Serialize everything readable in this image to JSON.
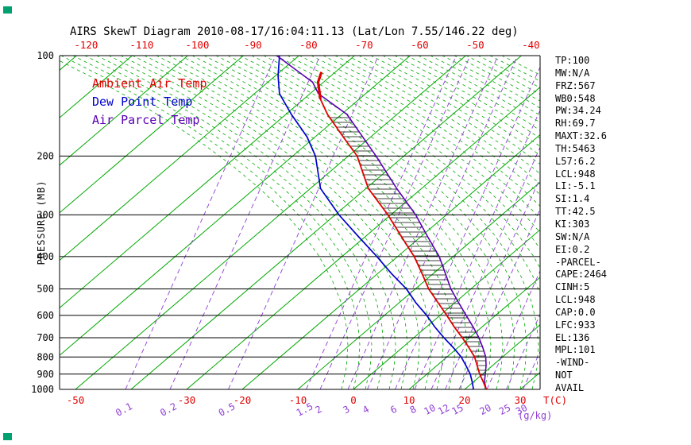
{
  "chart_data": {
    "type": "line",
    "title": "AIRS SkewT Diagram 2010-08-17/16:04:11.13 (Lat/Lon 7.55/146.22 deg)",
    "xlabel": "T(C)",
    "ylabel": "PRESSURE (MB)",
    "y_scale": "log",
    "ylim": [
      1000,
      100
    ],
    "pressure_ticks_mb": [
      100,
      200,
      300,
      400,
      500,
      600,
      700,
      800,
      900,
      1000
    ],
    "top_temp_ticks_c": [
      -120,
      -110,
      -100,
      -90,
      -80,
      -70,
      -60,
      -50,
      -40
    ],
    "bottom_temp_ticks_c": [
      -50,
      -30,
      -20,
      -10,
      0,
      10,
      20,
      30
    ],
    "temp_axis_unit": "T(C)",
    "mixing_ratio_unit": "(g/kg)",
    "mixing_ratio_ticks": [
      {
        "label": "0.1",
        "dewpoint_c_at_1000mb": -41
      },
      {
        "label": "0.2",
        "dewpoint_c_at_1000mb": -33
      },
      {
        "label": "0.5",
        "dewpoint_c_at_1000mb": -22.5
      },
      {
        "label": "1.5",
        "dewpoint_c_at_1000mb": -8.5
      },
      {
        "label": "2",
        "dewpoint_c_at_1000mb": -6
      },
      {
        "label": "3",
        "dewpoint_c_at_1000mb": -1
      },
      {
        "label": "4",
        "dewpoint_c_at_1000mb": 2.5
      },
      {
        "label": "6",
        "dewpoint_c_at_1000mb": 7.5
      },
      {
        "label": "8",
        "dewpoint_c_at_1000mb": 11
      },
      {
        "label": "10",
        "dewpoint_c_at_1000mb": 14
      },
      {
        "label": "12",
        "dewpoint_c_at_1000mb": 16.5
      },
      {
        "label": "15",
        "dewpoint_c_at_1000mb": 19
      },
      {
        "label": "20",
        "dewpoint_c_at_1000mb": 24
      },
      {
        "label": "25",
        "dewpoint_c_at_1000mb": 27.5
      },
      {
        "label": "30",
        "dewpoint_c_at_1000mb": 30.5
      }
    ],
    "series": [
      {
        "name": "Dew Point Temp",
        "color": "#0000cc",
        "style": "solid",
        "points": [
          [
            1000,
            21.6
          ],
          [
            950,
            19.8
          ],
          [
            900,
            17.8
          ],
          [
            850,
            15.3
          ],
          [
            800,
            12.6
          ],
          [
            750,
            9.2
          ],
          [
            700,
            5.4
          ],
          [
            650,
            1.5
          ],
          [
            600,
            -2.4
          ],
          [
            550,
            -7.0
          ],
          [
            500,
            -11.6
          ],
          [
            450,
            -17.5
          ],
          [
            400,
            -23.7
          ],
          [
            350,
            -31.0
          ],
          [
            300,
            -39.3
          ],
          [
            250,
            -48.2
          ],
          [
            200,
            -55.9
          ],
          [
            175,
            -61.5
          ],
          [
            150,
            -69.0
          ],
          [
            130,
            -75.5
          ],
          [
            115,
            -79.5
          ],
          [
            100,
            -83.5
          ]
        ]
      },
      {
        "name": "Air Parcel Temp",
        "color": "#5a00b4",
        "style": "solid",
        "points": [
          [
            1000,
            23.9
          ],
          [
            950,
            22.0
          ],
          [
            900,
            20.5
          ],
          [
            850,
            18.9
          ],
          [
            800,
            17.0
          ],
          [
            750,
            14.5
          ],
          [
            700,
            11.7
          ],
          [
            650,
            8.4
          ],
          [
            600,
            4.7
          ],
          [
            550,
            0.7
          ],
          [
            500,
            -3.6
          ],
          [
            450,
            -7.8
          ],
          [
            400,
            -12.5
          ],
          [
            350,
            -18.6
          ],
          [
            300,
            -25.5
          ],
          [
            250,
            -34.5
          ],
          [
            200,
            -45.0
          ],
          [
            175,
            -51.5
          ],
          [
            150,
            -59.0
          ],
          [
            130,
            -68.5
          ],
          [
            120,
            -72.0
          ],
          [
            100,
            -84.0
          ]
        ]
      },
      {
        "name": "Ambient Air Temp",
        "color": "#e00000",
        "style": "solid",
        "points": [
          [
            1000,
            23.9
          ],
          [
            950,
            21.8
          ],
          [
            900,
            19.5
          ],
          [
            850,
            17.3
          ],
          [
            800,
            15.0
          ],
          [
            750,
            12.0
          ],
          [
            700,
            8.7
          ],
          [
            650,
            5.0
          ],
          [
            600,
            1.2
          ],
          [
            550,
            -3.0
          ],
          [
            500,
            -7.6
          ],
          [
            450,
            -12.0
          ],
          [
            400,
            -17.0
          ],
          [
            350,
            -23.3
          ],
          [
            300,
            -30.5
          ],
          [
            250,
            -39.6
          ],
          [
            200,
            -48.4
          ],
          [
            175,
            -55.0
          ],
          [
            150,
            -62.5
          ],
          [
            135,
            -67.0
          ],
          [
            120,
            -71.0
          ],
          [
            112,
            -72.5
          ]
        ]
      }
    ],
    "hatch_between": [
      "Ambient Air Temp",
      "Air Parcel Temp"
    ],
    "hatch_meaning": "CAPE area between parcel and ambient temperature"
  },
  "legend": [
    {
      "label": "Ambient Air Temp",
      "color": "#e00000"
    },
    {
      "label": "Dew Point Temp",
      "color": "#0000cc"
    },
    {
      "label": "Air Parcel Temp",
      "color": "#5a00b4"
    }
  ],
  "panel_lines": [
    "TP:100",
    "MW:N/A",
    "FRZ:567",
    "WB0:548",
    "PW:34.24",
    "RH:69.7",
    "MAXT:32.6",
    "TH:5463",
    "L57:6.2",
    "LCL:948",
    "LI:-5.1",
    "SI:1.4",
    "TT:42.5",
    "KI:303",
    "SW:N/A",
    "EI:0.2",
    "-PARCEL-",
    "CAPE:2464",
    "CINH:5",
    "LCL:948",
    "CAP:0.0",
    "LFC:933",
    "EL:136",
    "MPL:101",
    "-WIND-",
    "NOT",
    "AVAIL"
  ],
  "grid_colors": {
    "isotherm": "#00a800",
    "adiabat": "#00a800",
    "mixing": "#8f3fd4",
    "isobar": "#000000",
    "tick_red": "#e00000"
  }
}
